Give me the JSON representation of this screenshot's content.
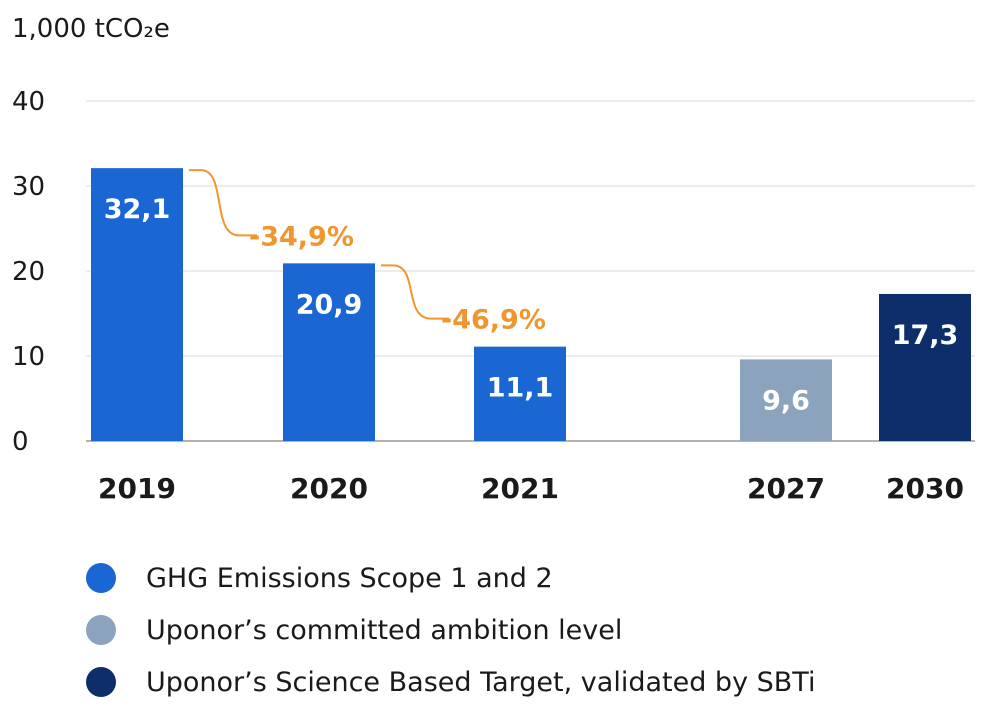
{
  "unit_label": "1,000 tCO₂e",
  "chart_data": {
    "type": "bar",
    "categories": [
      "2019",
      "2020",
      "2021",
      "2027",
      "2030"
    ],
    "values": [
      32.1,
      20.9,
      11.1,
      9.6,
      17.3
    ],
    "value_labels": [
      "32,1",
      "20,9",
      "11,1",
      "9,6",
      "17,3"
    ],
    "bar_series": [
      0,
      0,
      0,
      1,
      2
    ],
    "ylim": [
      0,
      40
    ],
    "yticks": [
      0,
      10,
      20,
      30,
      40
    ],
    "grid": true,
    "annotations": [
      {
        "from": "2019",
        "to": "2020",
        "text": "-34,9%"
      },
      {
        "from": "2020",
        "to": "2021",
        "text": "-46,9%"
      }
    ],
    "series": [
      {
        "name": "GHG Emissions Scope 1 and 2",
        "color": "#1a66d2"
      },
      {
        "name": "Uponor’s committed ambition level",
        "color": "#8ba3bc"
      },
      {
        "name": "Uponor’s Science Based Target, validated by SBTi",
        "color": "#0d2d6b"
      }
    ],
    "annotation_color": "#f0962e",
    "legend_position": "bottom-left"
  }
}
